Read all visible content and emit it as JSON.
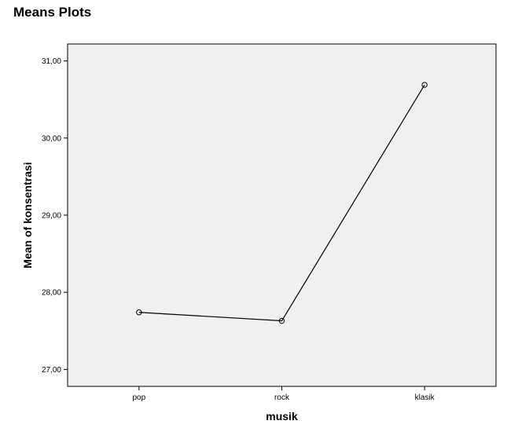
{
  "heading": "Means Plots",
  "chart_data": {
    "type": "line",
    "categories": [
      "pop",
      "rock",
      "klasik"
    ],
    "series": [
      {
        "values": [
          27.74,
          27.63,
          30.69
        ]
      }
    ],
    "xlabel": "musik",
    "ylabel": "Mean of konsentrasi",
    "ylim": [
      26.78,
      31.22
    ],
    "yticks": [
      27,
      28,
      29,
      30,
      31
    ],
    "ytick_labels": [
      "27,00",
      "28,00",
      "29,00",
      "30,00",
      "31,00"
    ],
    "grid": false,
    "marker": "open-circle",
    "colors": {
      "plot_background": "#f0f0f0",
      "line": "#000000",
      "frame": "#000000"
    }
  }
}
